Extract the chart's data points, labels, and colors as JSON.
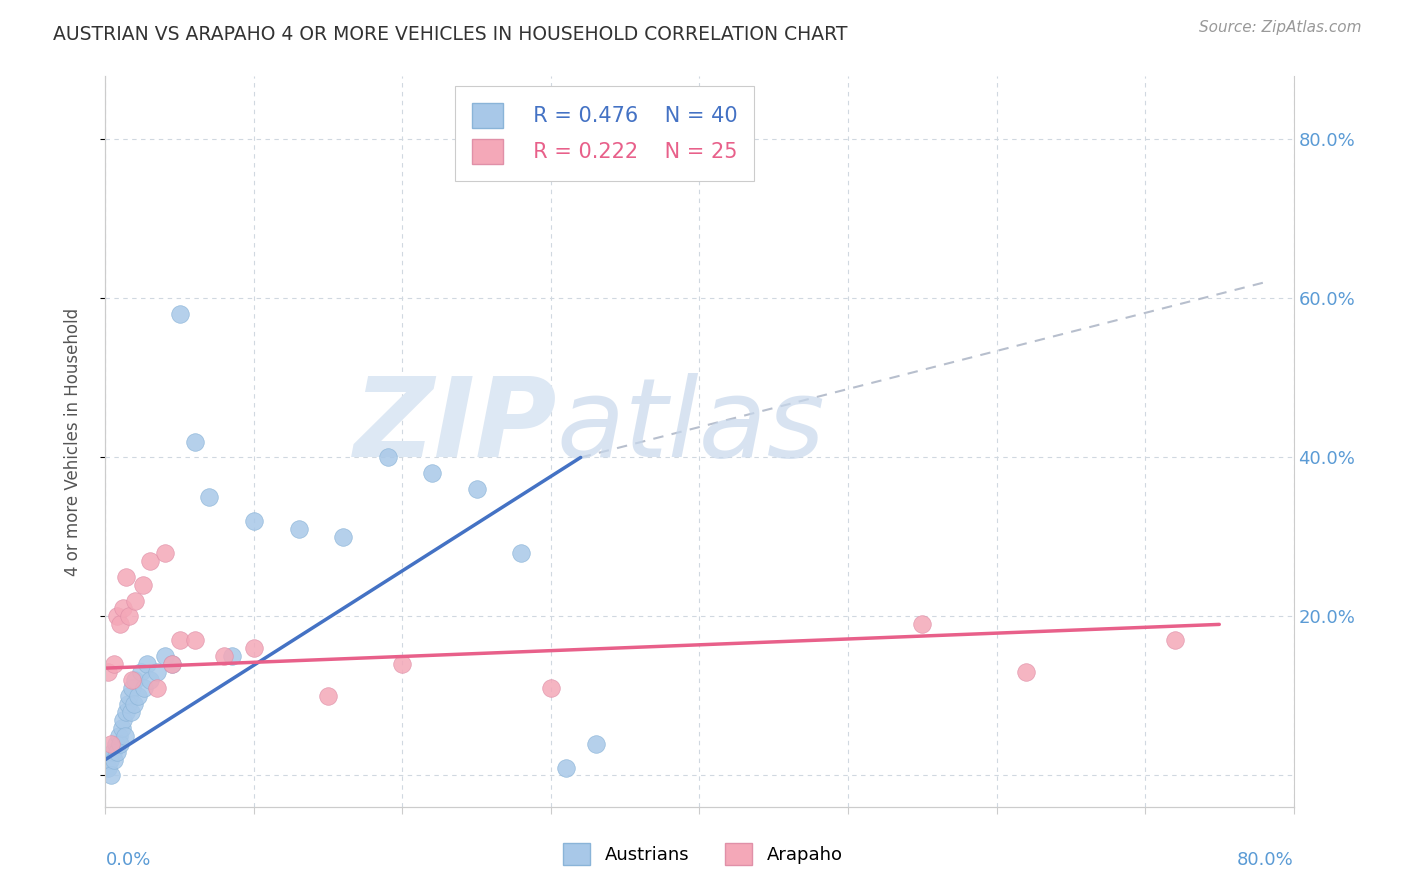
{
  "title": "AUSTRIAN VS ARAPAHO 4 OR MORE VEHICLES IN HOUSEHOLD CORRELATION CHART",
  "source": "Source: ZipAtlas.com",
  "ylabel": "4 or more Vehicles in Household",
  "xlim": [
    0.0,
    0.8
  ],
  "ylim": [
    -0.04,
    0.88
  ],
  "ytick_vals": [
    0.0,
    0.2,
    0.4,
    0.6,
    0.8
  ],
  "xtick_vals": [
    0.0,
    0.1,
    0.2,
    0.3,
    0.4,
    0.5,
    0.6,
    0.7,
    0.8
  ],
  "watermark_zip": "ZIP",
  "watermark_atlas": "atlas",
  "legend_blue_r": "R = 0.476",
  "legend_blue_n": "N = 40",
  "legend_pink_r": "R = 0.222",
  "legend_pink_n": "N = 25",
  "austrians_color": "#a8c8e8",
  "arapaho_color": "#f4a8b8",
  "blue_line_color": "#4472c4",
  "pink_line_color": "#e8608a",
  "dashed_line_color": "#b0b8c8",
  "background_color": "#ffffff",
  "grid_color": "#d0d8e0",
  "tick_label_color": "#5b9bd5",
  "aus_x": [
    0.002,
    0.003,
    0.004,
    0.005,
    0.006,
    0.007,
    0.008,
    0.009,
    0.01,
    0.011,
    0.012,
    0.013,
    0.014,
    0.015,
    0.016,
    0.017,
    0.018,
    0.019,
    0.02,
    0.022,
    0.024,
    0.026,
    0.028,
    0.03,
    0.035,
    0.04,
    0.045,
    0.05,
    0.06,
    0.07,
    0.085,
    0.1,
    0.13,
    0.16,
    0.19,
    0.22,
    0.25,
    0.28,
    0.31,
    0.33
  ],
  "aus_y": [
    0.01,
    0.02,
    0.0,
    0.03,
    0.02,
    0.04,
    0.03,
    0.05,
    0.04,
    0.06,
    0.07,
    0.05,
    0.08,
    0.09,
    0.1,
    0.08,
    0.11,
    0.09,
    0.12,
    0.1,
    0.13,
    0.11,
    0.14,
    0.12,
    0.13,
    0.15,
    0.14,
    0.58,
    0.42,
    0.35,
    0.15,
    0.32,
    0.31,
    0.3,
    0.4,
    0.38,
    0.36,
    0.28,
    0.01,
    0.04
  ],
  "ara_x": [
    0.002,
    0.004,
    0.006,
    0.008,
    0.01,
    0.012,
    0.014,
    0.016,
    0.018,
    0.02,
    0.025,
    0.03,
    0.035,
    0.04,
    0.045,
    0.05,
    0.06,
    0.08,
    0.1,
    0.15,
    0.2,
    0.3,
    0.55,
    0.62,
    0.72
  ],
  "ara_y": [
    0.13,
    0.04,
    0.14,
    0.2,
    0.19,
    0.21,
    0.25,
    0.2,
    0.12,
    0.22,
    0.24,
    0.27,
    0.11,
    0.28,
    0.14,
    0.17,
    0.17,
    0.15,
    0.16,
    0.1,
    0.14,
    0.11,
    0.19,
    0.13,
    0.17
  ],
  "blue_line_x": [
    0.0,
    0.32
  ],
  "blue_line_y": [
    0.02,
    0.4
  ],
  "pink_line_x": [
    0.0,
    0.75
  ],
  "pink_line_y": [
    0.135,
    0.19
  ],
  "dash_line_x": [
    0.32,
    0.78
  ],
  "dash_line_y": [
    0.4,
    0.62
  ]
}
